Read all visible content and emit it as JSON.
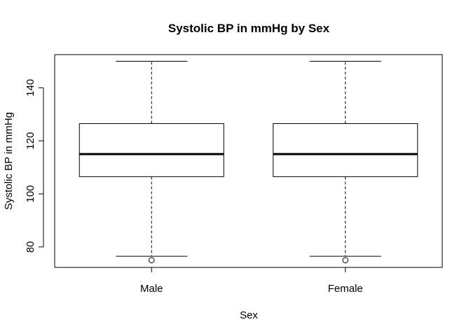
{
  "chart_data": {
    "type": "boxplot",
    "title": "Systolic BP in mmHg by Sex",
    "xlabel": "Sex",
    "ylabel": "Systolic BP in mmHg",
    "categories": [
      "Male",
      "Female"
    ],
    "ylim": [
      72.3,
      152.5
    ],
    "yticks": [
      80,
      100,
      120,
      140
    ],
    "boxes": [
      {
        "category": "Male",
        "whisker_low": 76.5,
        "q1": 106.5,
        "median": 115.0,
        "q3": 126.5,
        "whisker_high": 150.0,
        "outliers": [
          75.0
        ]
      },
      {
        "category": "Female",
        "whisker_low": 76.5,
        "q1": 106.5,
        "median": 115.0,
        "q3": 126.5,
        "whisker_high": 150.0,
        "outliers": [
          75.0
        ]
      }
    ],
    "grid": false,
    "legend": "none"
  }
}
